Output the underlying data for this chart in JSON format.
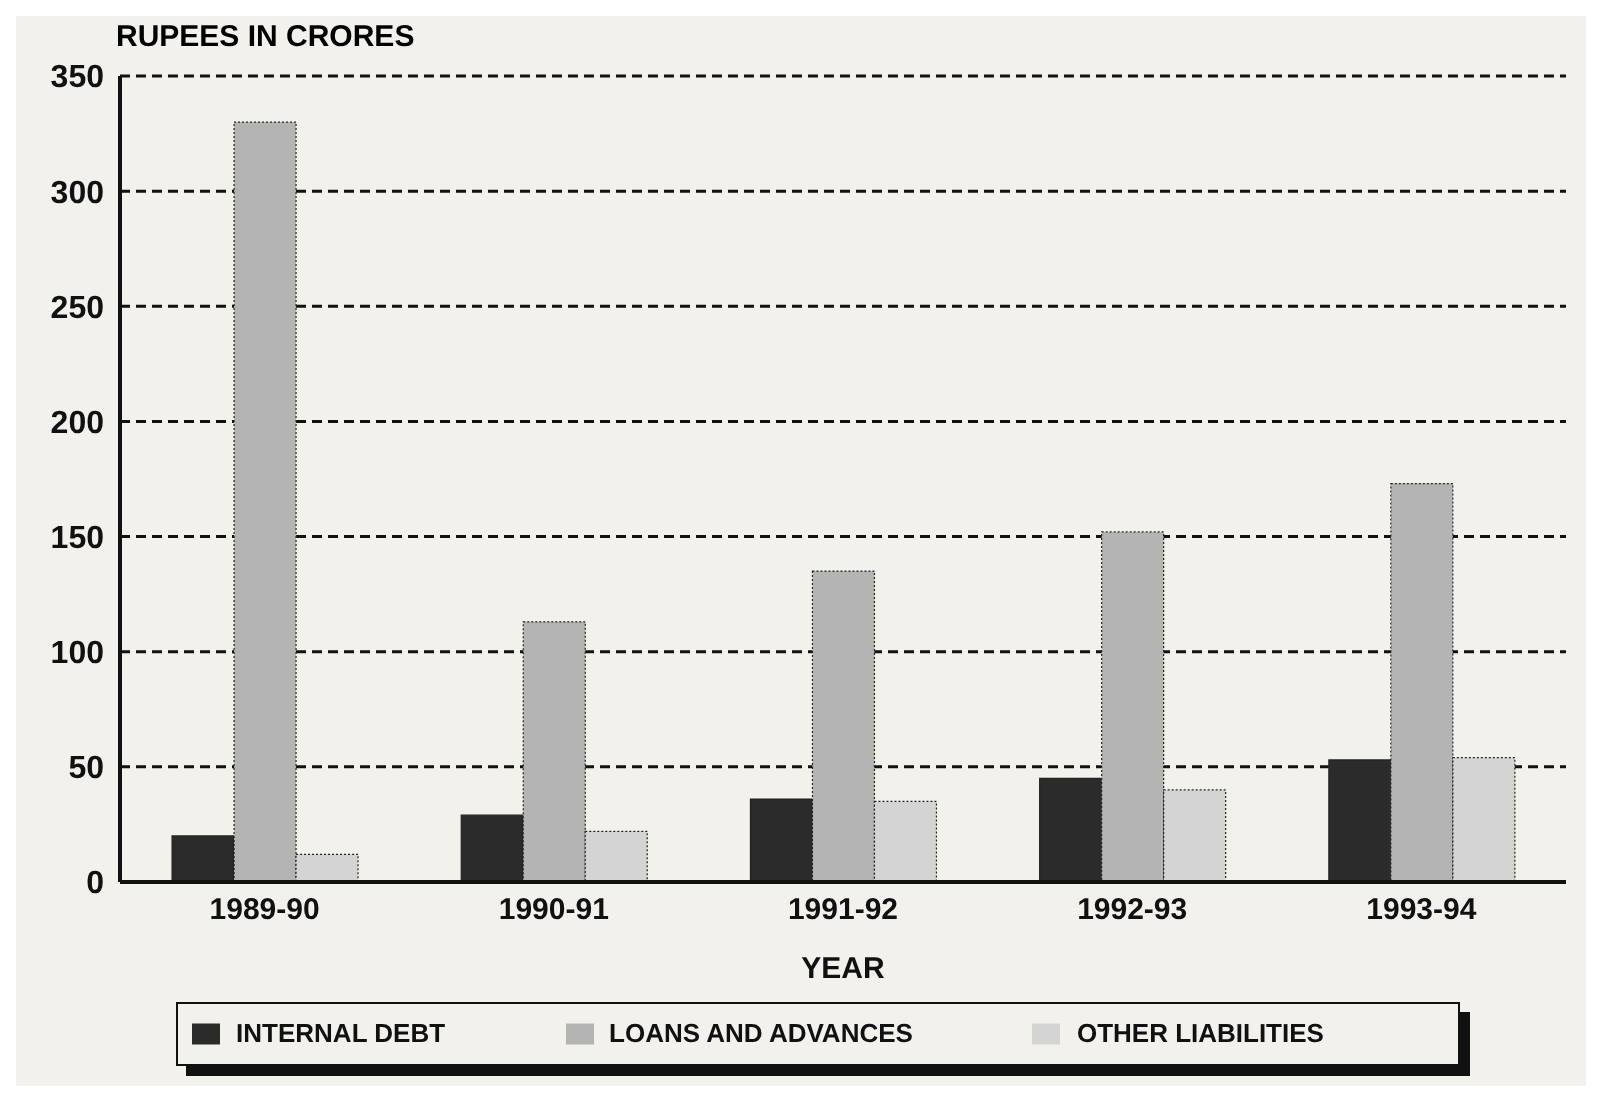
{
  "chart_data": {
    "type": "bar",
    "ylabel": "RUPEES IN CRORES",
    "xlabel": "YEAR",
    "categories": [
      "1989-90",
      "1990-91",
      "1991-92",
      "1992-93",
      "1993-94"
    ],
    "series": [
      {
        "name": "INTERNAL DEBT",
        "color": "#2b2b2b",
        "values": [
          20,
          29,
          36,
          45,
          53
        ]
      },
      {
        "name": "LOANS AND ADVANCES",
        "color": "#b4b4b4",
        "values": [
          330,
          113,
          135,
          152,
          173
        ]
      },
      {
        "name": "OTHER LIABILITIES",
        "color": "#d4d4d4",
        "values": [
          12,
          22,
          35,
          40,
          54
        ]
      }
    ],
    "ylim": [
      0,
      350
    ],
    "yticks": [
      0,
      50,
      100,
      150,
      200,
      250,
      300,
      350
    ],
    "grid": "y",
    "legend": "bottom"
  }
}
